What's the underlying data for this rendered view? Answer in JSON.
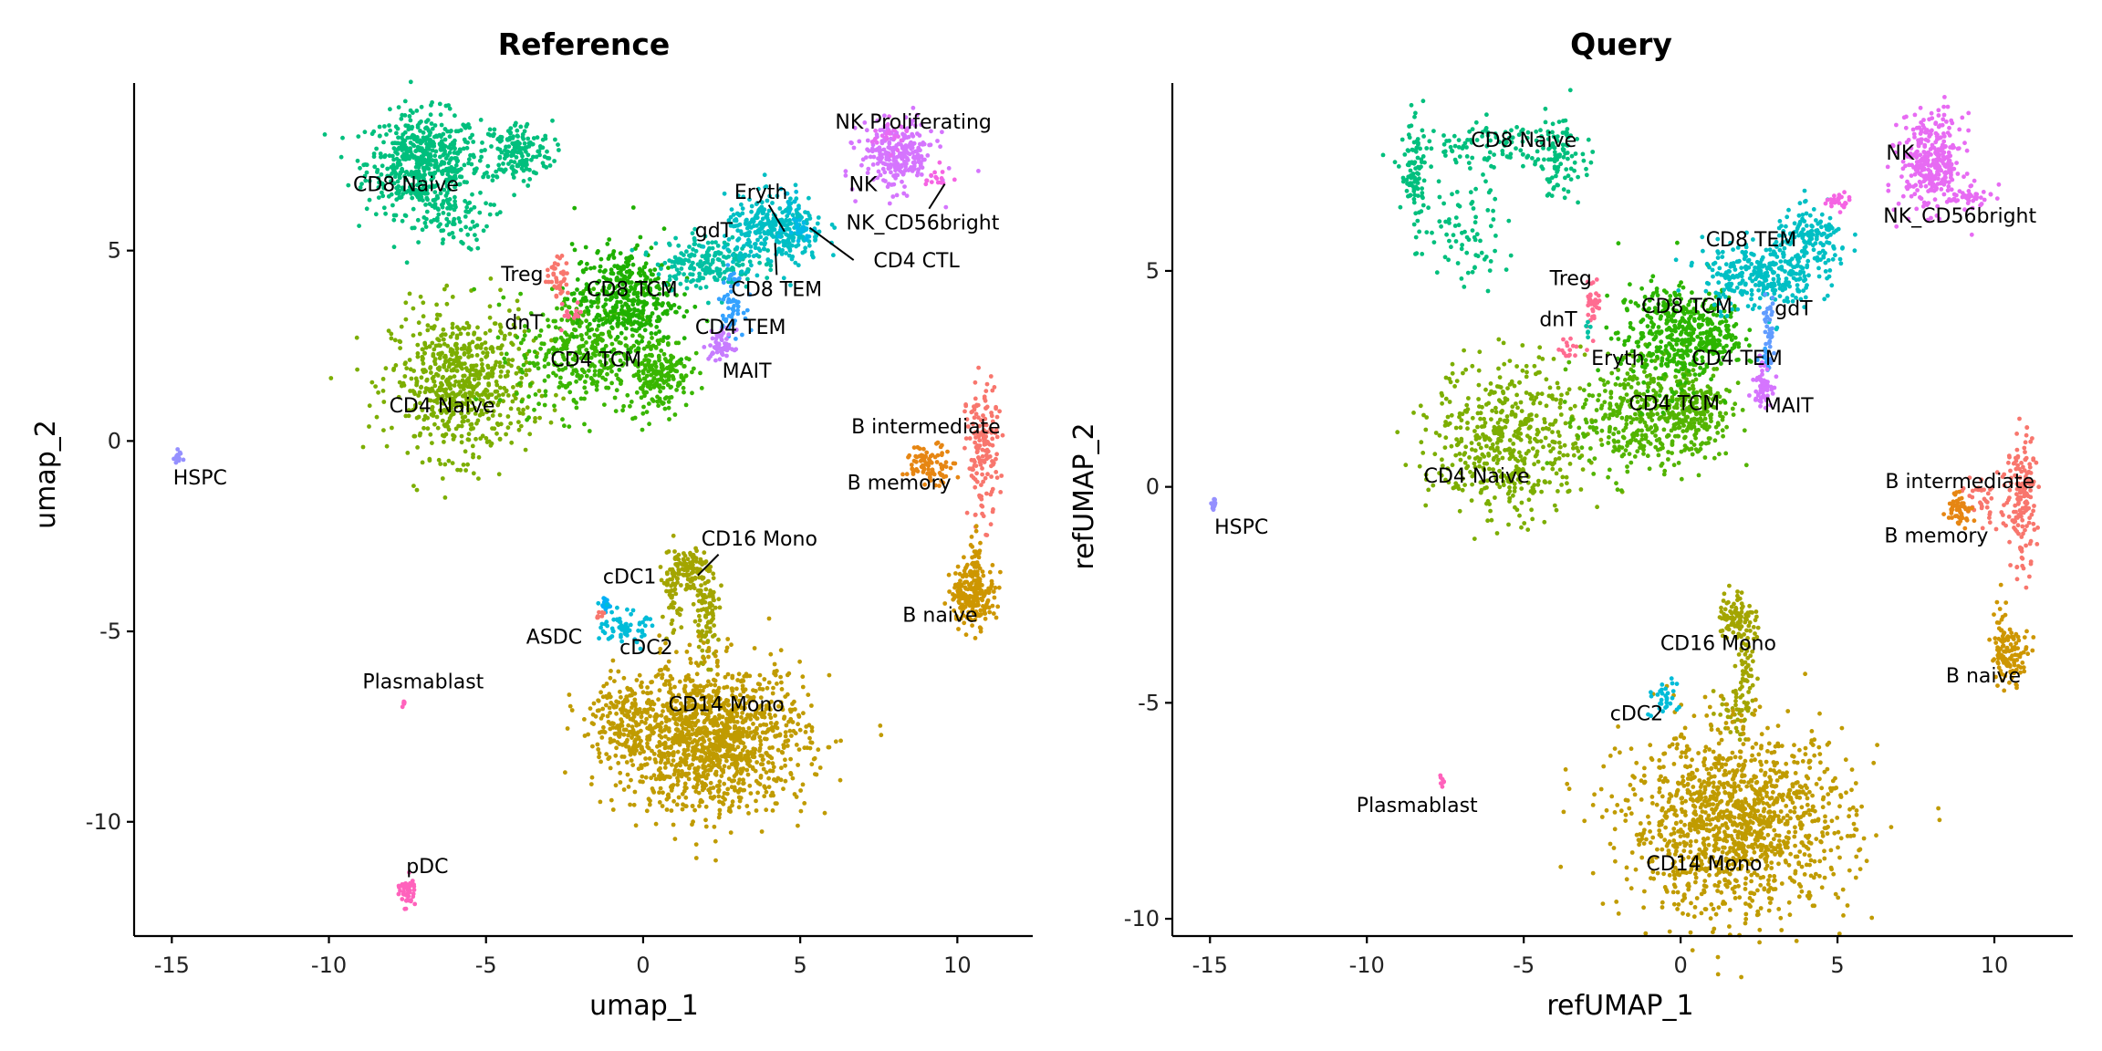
{
  "chart_data": [
    {
      "type": "scatter",
      "title": "Reference",
      "xlabel": "umap_1",
      "ylabel": "umap_2",
      "xlim": [
        -16.2,
        12.4
      ],
      "ylim": [
        -13.0,
        9.4
      ],
      "xticks": [
        -15,
        -10,
        -5,
        0,
        5,
        10
      ],
      "yticks": [
        -10,
        -5,
        0,
        5
      ],
      "grid": false,
      "legend": "none",
      "clusters": [
        {
          "name": "CD8 Naive",
          "color": "#00BF7D",
          "label": [
            -7.55,
            6.7
          ],
          "comps": [
            [
              -7.0,
              7.3,
              0.9,
              0.65,
              550
            ],
            [
              -4.0,
              7.6,
              0.55,
              0.4,
              180
            ],
            [
              -6.3,
              5.8,
              0.7,
              0.4,
              80
            ]
          ]
        },
        {
          "name": "CD4 Naive",
          "color": "#7CAE00",
          "label": [
            -6.4,
            0.9
          ],
          "comps": [
            [
              -5.8,
              1.5,
              1.1,
              0.95,
              650
            ]
          ]
        },
        {
          "name": "CD4 TCM",
          "color": "#39B600",
          "label": [
            -1.5,
            2.1
          ],
          "comps": [
            [
              -2.0,
              2.3,
              1.0,
              0.8,
              350
            ],
            [
              0.5,
              1.8,
              0.5,
              0.5,
              200
            ]
          ]
        },
        {
          "name": "CD8 TCM",
          "color": "#1FB000",
          "label": [
            -0.35,
            3.95
          ],
          "comps": [
            [
              -0.6,
              3.8,
              0.8,
              0.65,
              380
            ]
          ]
        },
        {
          "name": "Treg",
          "color": "#F8766D",
          "label": [
            -3.85,
            4.35
          ],
          "comps": [
            [
              -2.7,
              4.3,
              0.18,
              0.25,
              40
            ]
          ]
        },
        {
          "name": "dnT",
          "color": "#FF6C91",
          "label": [
            -3.8,
            3.07
          ],
          "comps": [
            [
              -2.3,
              3.3,
              0.2,
              0.2,
              15
            ]
          ]
        },
        {
          "name": "gdT",
          "color": "#00C1A3",
          "label": [
            2.25,
            5.5
          ],
          "comps": [
            [
              2.0,
              4.7,
              0.8,
              0.35,
              200
            ]
          ]
        },
        {
          "name": "CD8 TEM",
          "color": "#00BFC4",
          "label": [
            4.25,
            3.95
          ],
          "comps": [
            [
              4.2,
              5.5,
              0.8,
              0.45,
              320
            ]
          ]
        },
        {
          "name": "Eryth",
          "color": "#00BBDA",
          "label": [
            3.75,
            6.5
          ],
          "comps": [
            [
              4.6,
              6.3,
              0.2,
              0.15,
              10
            ]
          ]
        },
        {
          "name": "CD4 CTL",
          "color": "#00B8E7",
          "label": [
            8.7,
            4.7
          ],
          "comps": [
            [
              5.0,
              5.6,
              0.25,
              0.2,
              25
            ]
          ]
        },
        {
          "name": "CD4 TEM",
          "color": "#35A2FF",
          "label": [
            3.1,
            2.95
          ],
          "comps": [
            [
              2.8,
              3.6,
              0.2,
              0.4,
              60
            ]
          ]
        },
        {
          "name": "MAIT",
          "color": "#C77CFF",
          "label": [
            3.3,
            1.8
          ],
          "comps": [
            [
              2.5,
              2.5,
              0.2,
              0.2,
              60
            ]
          ]
        },
        {
          "name": "NK",
          "color": "#D575FE",
          "label": [
            7.0,
            6.7
          ],
          "comps": [
            [
              8.1,
              7.5,
              0.6,
              0.45,
              260
            ]
          ]
        },
        {
          "name": "NK Proliferating",
          "color": "#E76BF3",
          "label": [
            8.6,
            8.35
          ],
          "comps": [
            [
              7.8,
              8.0,
              0.3,
              0.2,
              25
            ]
          ]
        },
        {
          "name": "NK_CD56bright",
          "color": "#F564E3",
          "label": [
            8.9,
            5.7
          ],
          "comps": [
            [
              9.4,
              6.9,
              0.2,
              0.15,
              15
            ]
          ]
        },
        {
          "name": "B intermediate",
          "color": "#F8766D",
          "label": [
            9.0,
            0.35
          ],
          "comps": [
            [
              10.8,
              -0.3,
              0.25,
              0.9,
              160
            ]
          ]
        },
        {
          "name": "B memory",
          "color": "#E68613",
          "label": [
            8.15,
            -1.13
          ],
          "comps": [
            [
              9.1,
              -0.6,
              0.4,
              0.25,
              90
            ]
          ]
        },
        {
          "name": "B naive",
          "color": "#CD9600",
          "label": [
            9.45,
            -4.6
          ],
          "comps": [
            [
              10.5,
              -4.0,
              0.35,
              0.4,
              220
            ],
            [
              10.6,
              -3.0,
              0.1,
              0.4,
              20
            ]
          ]
        },
        {
          "name": "CD16 Mono",
          "color": "#A3A500",
          "label": [
            3.7,
            -2.6
          ],
          "comps": [
            [
              1.4,
              -3.4,
              0.35,
              0.3,
              120
            ],
            [
              2.0,
              -4.6,
              0.2,
              0.6,
              90
            ],
            [
              0.9,
              -4.3,
              0.15,
              0.5,
              40
            ]
          ]
        },
        {
          "name": "CD14 Mono",
          "color": "#C09B00",
          "label": [
            2.65,
            -6.95
          ],
          "comps": [
            [
              2.2,
              -7.8,
              1.5,
              0.95,
              1300
            ],
            [
              -0.7,
              -7.4,
              0.5,
              0.6,
              150
            ]
          ]
        },
        {
          "name": "cDC1",
          "color": "#00B0F6",
          "label": [
            -0.43,
            -3.6
          ],
          "comps": [
            [
              -1.1,
              -4.3,
              0.12,
              0.15,
              15
            ]
          ]
        },
        {
          "name": "cDC2",
          "color": "#00BCD8",
          "label": [
            0.1,
            -5.45
          ],
          "comps": [
            [
              -0.6,
              -4.9,
              0.35,
              0.2,
              70
            ]
          ]
        },
        {
          "name": "ASDC",
          "color": "#F8766D",
          "label": [
            -2.83,
            -5.18
          ],
          "comps": [
            [
              -1.4,
              -4.6,
              0.08,
              0.05,
              8
            ]
          ]
        },
        {
          "name": "HSPC",
          "color": "#9590FF",
          "label": [
            -14.1,
            -1.0
          ],
          "comps": [
            [
              -14.8,
              -0.4,
              0.08,
              0.08,
              15
            ]
          ]
        },
        {
          "name": "Plasmablast",
          "color": "#FF62BC",
          "label": [
            -7.0,
            -6.35
          ],
          "comps": [
            [
              -7.6,
              -6.9,
              0.05,
              0.05,
              6
            ]
          ]
        },
        {
          "name": "pDC",
          "color": "#FF62BC",
          "label": [
            -6.87,
            -11.2
          ],
          "comps": [
            [
              -7.5,
              -11.8,
              0.12,
              0.2,
              50
            ]
          ]
        }
      ],
      "leader_lines": [
        [
          [
            4.0,
            6.2
          ],
          [
            4.5,
            5.5
          ]
        ],
        [
          [
            4.2,
            5.2
          ],
          [
            4.25,
            4.36
          ]
        ],
        [
          [
            5.3,
            5.6
          ],
          [
            6.7,
            4.75
          ]
        ],
        [
          [
            9.1,
            6.1
          ],
          [
            9.6,
            6.75
          ]
        ],
        [
          [
            1.74,
            -3.53
          ],
          [
            2.4,
            -2.98
          ]
        ]
      ]
    },
    {
      "type": "scatter",
      "title": "Query",
      "xlabel": "refUMAP_1",
      "ylabel": "refUMAP_2",
      "xlim": [
        -16.2,
        12.5
      ],
      "ylim": [
        -10.4,
        9.35
      ],
      "xticks": [
        -15,
        -10,
        -5,
        0,
        5,
        10
      ],
      "yticks": [
        -10,
        -5,
        0,
        5
      ],
      "grid": false,
      "legend": "none",
      "clusters": [
        {
          "name": "CD8 Naive",
          "color": "#00BF7D",
          "label": [
            -5.0,
            8.0
          ],
          "comps": [
            [
              -8.5,
              7.3,
              0.2,
              0.6,
              90
            ],
            [
              -6.0,
              7.9,
              1.3,
              0.3,
              110
            ],
            [
              -3.9,
              7.6,
              0.4,
              0.45,
              90
            ],
            [
              -7.0,
              5.8,
              0.8,
              0.6,
              80
            ]
          ]
        },
        {
          "name": "CD4 Naive",
          "color": "#7CAE00",
          "label": [
            -6.5,
            0.23
          ],
          "comps": [
            [
              -5.5,
              1.1,
              1.2,
              0.9,
              500
            ]
          ]
        },
        {
          "name": "CD4 TCM",
          "color": "#53B400",
          "label": [
            -0.2,
            1.9
          ],
          "comps": [
            [
              -1.6,
              1.6,
              0.8,
              0.7,
              300
            ],
            [
              0.4,
              1.8,
              0.6,
              0.6,
              260
            ]
          ]
        },
        {
          "name": "CD8 TCM",
          "color": "#2CB500",
          "label": [
            0.2,
            4.15
          ],
          "comps": [
            [
              -0.4,
              3.5,
              0.8,
              0.6,
              320
            ],
            [
              1.0,
              3.6,
              0.5,
              0.4,
              140
            ]
          ]
        },
        {
          "name": "Treg",
          "color": "#FF6C91",
          "label": [
            -3.5,
            4.8
          ],
          "comps": [
            [
              -2.8,
              4.3,
              0.12,
              0.3,
              35
            ]
          ]
        },
        {
          "name": "dnT",
          "color": "#FF6C91",
          "label": [
            -3.9,
            3.85
          ],
          "comps": [
            [
              -3.5,
              3.2,
              0.2,
              0.12,
              15
            ]
          ]
        },
        {
          "name": "Eryth",
          "color": "#00C1A3",
          "label": [
            -2.0,
            2.95
          ],
          "comps": [
            [
              -2.9,
              3.6,
              0.1,
              0.1,
              6
            ]
          ]
        },
        {
          "name": "CD8 TEM",
          "color": "#00BFC4",
          "label": [
            2.25,
            5.7
          ],
          "comps": [
            [
              2.5,
              4.9,
              0.9,
              0.4,
              300
            ],
            [
              4.2,
              5.7,
              0.6,
              0.35,
              150
            ]
          ]
        },
        {
          "name": "gdT",
          "color": "#619CFF",
          "label": [
            3.6,
            4.1
          ],
          "comps": [
            [
              2.8,
              3.6,
              0.1,
              0.4,
              40
            ]
          ]
        },
        {
          "name": "CD4 TEM",
          "color": "#35A2FF",
          "label": [
            1.8,
            2.95
          ],
          "comps": [
            [
              2.7,
              3.0,
              0.1,
              0.2,
              10
            ]
          ]
        },
        {
          "name": "MAIT",
          "color": "#D575FE",
          "label": [
            3.45,
            1.85
          ],
          "comps": [
            [
              2.6,
              2.4,
              0.15,
              0.25,
              60
            ]
          ]
        },
        {
          "name": "NK",
          "color": "#E76BF3",
          "label": [
            7.0,
            7.7
          ],
          "comps": [
            [
              8.0,
              7.5,
              0.5,
              0.55,
              330
            ],
            [
              9.2,
              6.7,
              0.35,
              0.1,
              40
            ]
          ]
        },
        {
          "name": "NK_CD56bright",
          "color": "#F564E3",
          "label": [
            8.9,
            6.25
          ],
          "comps": [
            [
              5.0,
              6.6,
              0.2,
              0.1,
              25
            ]
          ]
        },
        {
          "name": "B intermediate",
          "color": "#F8766D",
          "label": [
            8.9,
            0.1
          ],
          "comps": [
            [
              10.9,
              -0.4,
              0.2,
              0.8,
              150
            ],
            [
              9.8,
              -0.3,
              0.5,
              0.3,
              50
            ]
          ]
        },
        {
          "name": "B memory",
          "color": "#E68613",
          "label": [
            8.15,
            -1.16
          ],
          "comps": [
            [
              8.9,
              -0.5,
              0.2,
              0.2,
              50
            ]
          ]
        },
        {
          "name": "B naive",
          "color": "#CD9600",
          "label": [
            9.65,
            -4.4
          ],
          "comps": [
            [
              10.5,
              -3.9,
              0.3,
              0.3,
              110
            ],
            [
              10.2,
              -3.0,
              0.1,
              0.4,
              15
            ]
          ]
        },
        {
          "name": "CD16 Mono",
          "color": "#A3A500",
          "label": [
            1.2,
            -3.65
          ],
          "comps": [
            [
              1.8,
              -3.0,
              0.3,
              0.3,
              100
            ],
            [
              2.1,
              -4.3,
              0.15,
              0.5,
              50
            ],
            [
              1.6,
              -5.2,
              0.3,
              0.3,
              40
            ]
          ]
        },
        {
          "name": "CD14 Mono",
          "color": "#C09B00",
          "label": [
            0.75,
            -8.75
          ],
          "comps": [
            [
              1.8,
              -7.8,
              1.8,
              1.05,
              1300
            ]
          ]
        },
        {
          "name": "cDC2",
          "color": "#00BCD8",
          "label": [
            -1.4,
            -5.28
          ],
          "comps": [
            [
              -0.6,
              -4.9,
              0.25,
              0.2,
              30
            ]
          ]
        },
        {
          "name": "HSPC",
          "color": "#9590FF",
          "label": [
            -14.0,
            -0.96
          ],
          "comps": [
            [
              -14.9,
              -0.4,
              0.06,
              0.08,
              15
            ]
          ]
        },
        {
          "name": "Plasmablast",
          "color": "#FF62BC",
          "label": [
            -8.4,
            -7.4
          ],
          "comps": [
            [
              -7.6,
              -6.8,
              0.05,
              0.05,
              8
            ]
          ]
        }
      ],
      "leader_lines": []
    }
  ]
}
